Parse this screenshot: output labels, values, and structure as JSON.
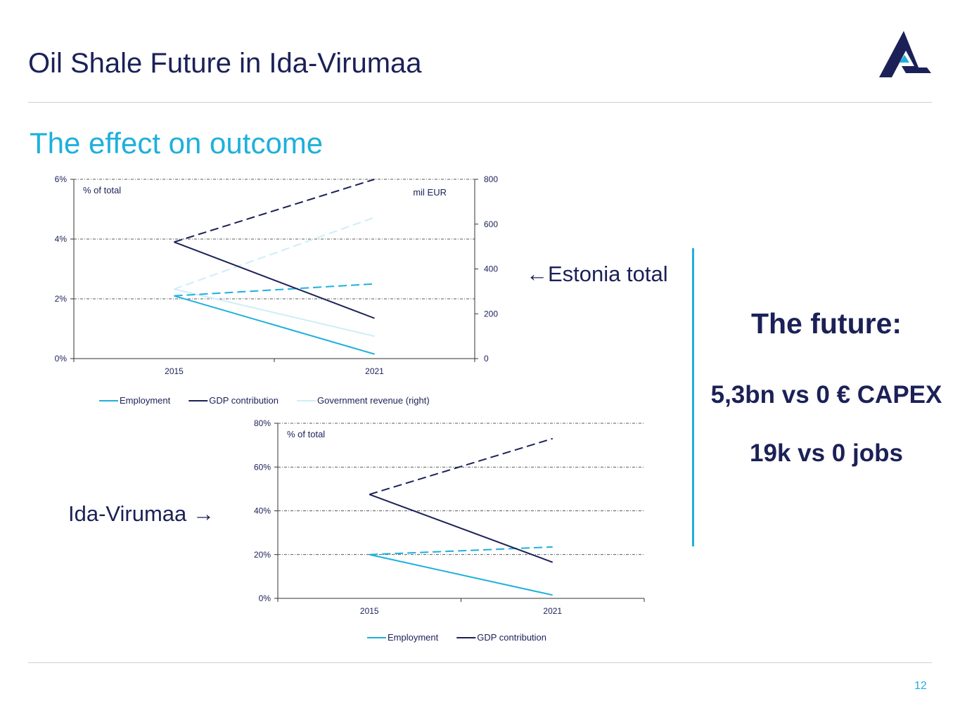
{
  "slide": {
    "title": "Oil Shale Future in Ida-Virumaa",
    "subtitle": "The effect on outcome",
    "page_number": "12"
  },
  "annotations": {
    "estonia_total": "←Estonia total",
    "ida_virumaa": "Ida-Virumaa →"
  },
  "future": {
    "title": "The future:",
    "capex": "5,3bn vs 0 € CAPEX",
    "jobs": "19k vs 0 jobs"
  },
  "colors": {
    "navy": "#1b2157",
    "accent": "#1eb0dc",
    "light": "#cdeef8"
  },
  "chart_data": [
    {
      "type": "line",
      "categories": [
        "2015",
        "2021"
      ],
      "y_left_label": "% of total",
      "y_right_label": "mil EUR",
      "y_left_ticks": [
        "0%",
        "2%",
        "4%",
        "6%"
      ],
      "y_right_ticks": [
        "0",
        "200",
        "400",
        "600",
        "800"
      ],
      "ylim_left": [
        0,
        6
      ],
      "ylim_right": [
        0,
        800
      ],
      "legend": [
        "Employment",
        "GDP contribution",
        "Government revenue (right)"
      ],
      "series": [
        {
          "name": "Employment",
          "axis": "left",
          "style": "solid",
          "color": "#1eb0dc",
          "values": [
            2.1,
            0.15
          ]
        },
        {
          "name": "Employment",
          "axis": "left",
          "style": "dashed",
          "color": "#1eb0dc",
          "values": [
            2.1,
            2.5
          ]
        },
        {
          "name": "GDP contribution",
          "axis": "left",
          "style": "solid",
          "color": "#1b2157",
          "values": [
            3.9,
            1.35
          ]
        },
        {
          "name": "GDP contribution",
          "axis": "left",
          "style": "dashed",
          "color": "#1b2157",
          "values": [
            3.9,
            6.0
          ]
        },
        {
          "name": "Government revenue (right)",
          "axis": "right",
          "style": "solid",
          "color": "#cdeef8",
          "values": [
            310,
            100
          ]
        },
        {
          "name": "Government revenue (right)",
          "axis": "right",
          "style": "dashed",
          "color": "#cdeef8",
          "values": [
            310,
            630
          ]
        }
      ]
    },
    {
      "type": "line",
      "categories": [
        "2015",
        "2021"
      ],
      "y_left_label": "% of total",
      "y_left_ticks": [
        "0%",
        "20%",
        "40%",
        "60%",
        "80%"
      ],
      "ylim_left": [
        0,
        80
      ],
      "legend": [
        "Employment",
        "GDP contribution"
      ],
      "series": [
        {
          "name": "Employment",
          "axis": "left",
          "style": "solid",
          "color": "#1eb0dc",
          "values": [
            20,
            1.5
          ]
        },
        {
          "name": "Employment",
          "axis": "left",
          "style": "dashed",
          "color": "#1eb0dc",
          "values": [
            20,
            23.5
          ]
        },
        {
          "name": "GDP contribution",
          "axis": "left",
          "style": "solid",
          "color": "#1b2157",
          "values": [
            47.5,
            16.5
          ]
        },
        {
          "name": "GDP contribution",
          "axis": "left",
          "style": "dashed",
          "color": "#1b2157",
          "values": [
            47.5,
            73
          ]
        }
      ]
    }
  ]
}
